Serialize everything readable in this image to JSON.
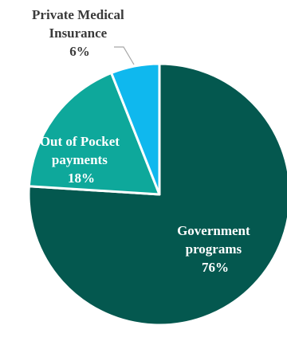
{
  "chart_data": {
    "type": "pie",
    "title": "",
    "slices": [
      {
        "label_lines": [
          "Government",
          "programs"
        ],
        "value": 76,
        "value_label": "76%",
        "color": "#04584f",
        "label_color": "#ffffff"
      },
      {
        "label_lines": [
          "Out of Pocket",
          "payments"
        ],
        "value": 18,
        "value_label": "18%",
        "color": "#0ea89b",
        "label_color": "#ffffff"
      },
      {
        "label_lines": [
          "Private Medical",
          "Insurance"
        ],
        "value": 6,
        "value_label": "6%",
        "color": "#0fb8ee",
        "label_color": "#3a3a3a"
      }
    ],
    "legend": "none",
    "start_angle": "12 o'clock",
    "direction": "clockwise",
    "slice_border_color": "#ffffff",
    "leader_line_color": "#a6a6a6"
  }
}
